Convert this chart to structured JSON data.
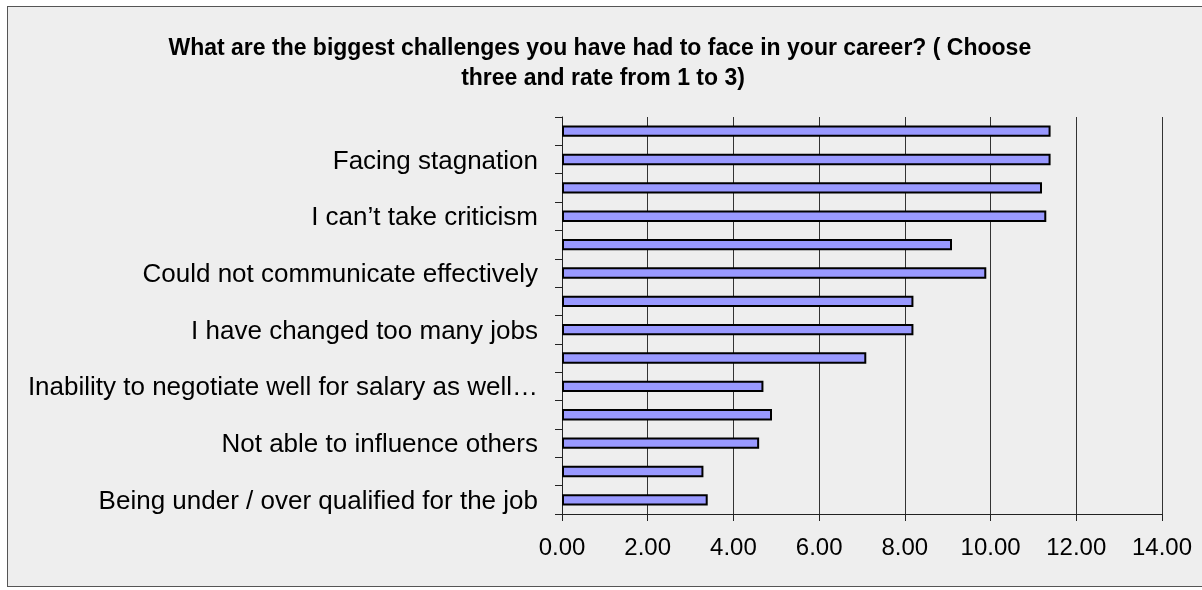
{
  "chart_data": {
    "type": "bar",
    "orientation": "horizontal",
    "title": "What are the biggest challenges you have had to face in your career? ( Choose three and rate from 1 to 3)",
    "categories": [
      null,
      "Facing stagnation",
      null,
      "I can’t take criticism",
      null,
      "Could not communicate effectively",
      null,
      "I have changed too many jobs",
      null,
      "Inability to negotiate well for salary as well…",
      null,
      "Not able to influence others",
      null,
      "Being under / over qualified for the job"
    ],
    "values": [
      11.4,
      11.4,
      11.2,
      11.3,
      9.1,
      9.9,
      8.2,
      8.2,
      7.1,
      4.7,
      4.9,
      4.6,
      3.3,
      3.4
    ],
    "color": "#9999ff",
    "xlim": [
      0,
      14
    ],
    "xticks": [
      {
        "value": 0,
        "label": "0.00"
      },
      {
        "value": 2,
        "label": "2.00"
      },
      {
        "value": 4,
        "label": "4.00"
      },
      {
        "value": 6,
        "label": "6.00"
      },
      {
        "value": 8,
        "label": "8.00"
      },
      {
        "value": 10,
        "label": "10.00"
      },
      {
        "value": 12,
        "label": "12.00"
      },
      {
        "value": 14,
        "label": "14.00"
      }
    ],
    "grid": "x"
  }
}
